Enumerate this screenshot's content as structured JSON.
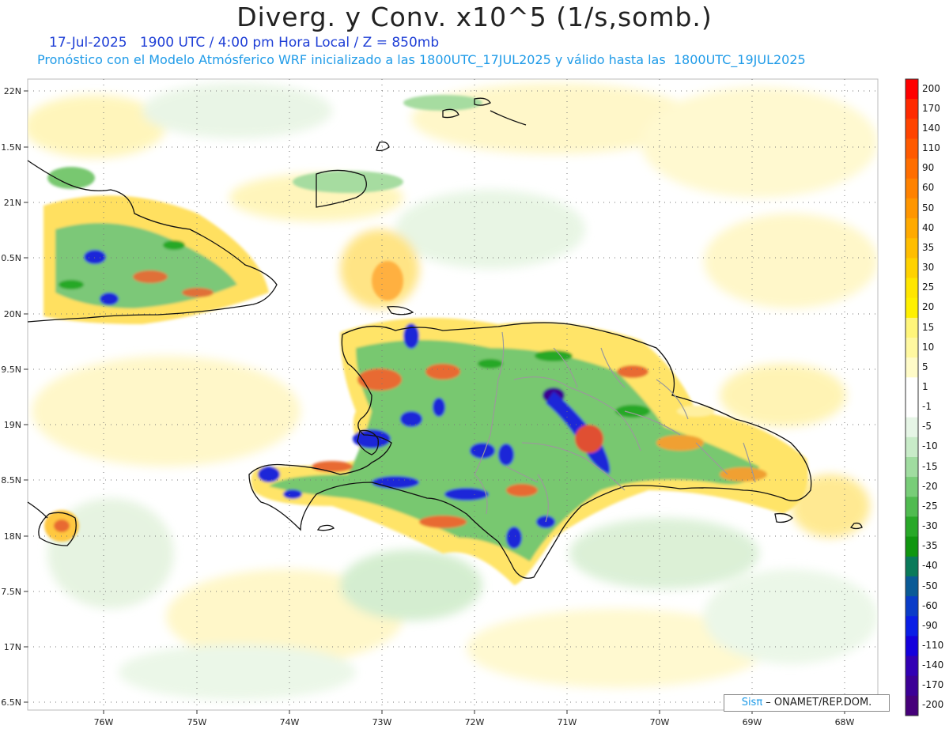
{
  "header": {
    "title": "Diverg. y Conv. x10^5 (1/s,somb.)",
    "line1": "17-Jul-2025   1900 UTC / 4:00 pm Hora Local / Z = 850mb",
    "line2": "Pronóstico con el Modelo Atmósferico WRF inicializado a las 1800UTC_17JUL2025 y válido hasta las  1800UTC_19JUL2025"
  },
  "axes": {
    "lat_labels": [
      "22N",
      "1.5N",
      "21N",
      "0.5N",
      "20N",
      "9.5N",
      "19N",
      "8.5N",
      "18N",
      "7.5N",
      "17N",
      "6.5N"
    ],
    "lon_labels": [
      "76W",
      "75W",
      "74W",
      "73W",
      "72W",
      "71W",
      "70W",
      "69W",
      "68W"
    ]
  },
  "colorbar": {
    "labels": [
      "200",
      "170",
      "140",
      "110",
      "90",
      "60",
      "50",
      "40",
      "35",
      "30",
      "25",
      "20",
      "15",
      "10",
      "5",
      "1",
      "-1",
      "-5",
      "-10",
      "-15",
      "-20",
      "-25",
      "-30",
      "-35",
      "-40",
      "-50",
      "-60",
      "-90",
      "-110",
      "-140",
      "-170",
      "-200"
    ],
    "colors": [
      "#ff0000",
      "#ff2a00",
      "#ff4400",
      "#ff5a00",
      "#ff6e00",
      "#ff8200",
      "#ff9600",
      "#ffaa00",
      "#ffbe00",
      "#ffd200",
      "#ffe600",
      "#fff000",
      "#fff57a",
      "#fff8a0",
      "#fffbc8",
      "#ffffff",
      "#ffffff",
      "#e6f5e6",
      "#c8ebc8",
      "#a0dca0",
      "#78cd78",
      "#50bb50",
      "#28a828",
      "#109610",
      "#0a7a5a",
      "#0a5a96",
      "#0a3cc8",
      "#0a1ee6",
      "#1400dc",
      "#3200b4",
      "#3c0096",
      "#46007a"
    ]
  },
  "credit": {
    "sis": "Sisπ",
    "org": " – ONAMET/REP.DOM."
  }
}
